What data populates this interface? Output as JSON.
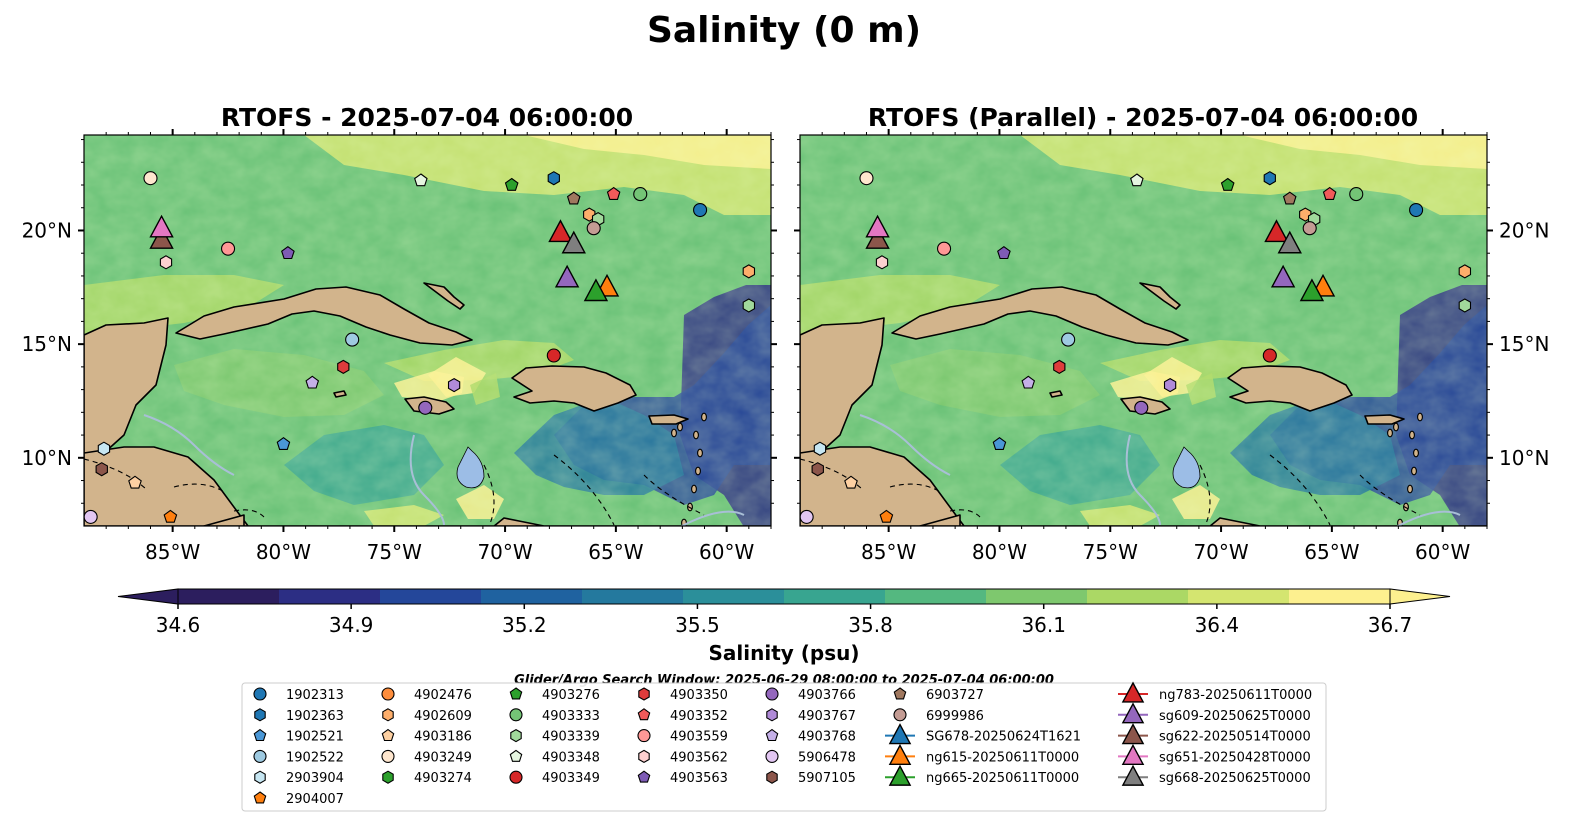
{
  "figure": {
    "title": "Salinity (0 m)",
    "search_window": "Glider/Argo Search Window: 2025-06-29 08:00:00 to 2025-07-04 06:00:00"
  },
  "panels": [
    {
      "title": "RTOFS - 2025-07-04 06:00:00"
    },
    {
      "title": "RTOFS (Parallel) - 2025-07-04 06:00:00"
    }
  ],
  "map": {
    "lon_range": [
      -89,
      -58
    ],
    "lat_range": [
      7,
      24.2
    ],
    "lon_ticks": [
      "85°W",
      "80°W",
      "75°W",
      "70°W",
      "65°W",
      "60°W"
    ],
    "lat_ticks": [
      "20°N",
      "15°N",
      "10°N"
    ],
    "land_color": "#d2b48c",
    "lake_color": "#9cbde6",
    "river_color": "#a8bfd6"
  },
  "colorbar": {
    "label": "Salinity (psu)",
    "min": 34.6,
    "max": 36.7,
    "tick_labels": [
      "34.6",
      "34.9",
      "35.2",
      "35.5",
      "35.8",
      "36.1",
      "36.4",
      "36.7"
    ],
    "colormap": [
      "#2c1e5e",
      "#2c2e84",
      "#24479a",
      "#1f62a0",
      "#24799e",
      "#2b8f9a",
      "#38a590",
      "#54b880",
      "#7ec86e",
      "#abd865",
      "#d4e570",
      "#fdf08f"
    ]
  },
  "legend": {
    "argo": [
      {
        "label": "1902313",
        "shape": "circle",
        "color": "#1f77b4"
      },
      {
        "label": "1902363",
        "shape": "hexagon",
        "color": "#1f77b4"
      },
      {
        "label": "1902521",
        "shape": "pentagon",
        "color": "#4a97d6"
      },
      {
        "label": "1902522",
        "shape": "circle",
        "color": "#9ecae1"
      },
      {
        "label": "2903904",
        "shape": "hexagon",
        "color": "#c6e6f2"
      },
      {
        "label": "2904007",
        "shape": "pentagon",
        "color": "#ff7f0e"
      },
      {
        "label": "4902476",
        "shape": "circle",
        "color": "#fd8d3c"
      },
      {
        "label": "4902609",
        "shape": "hexagon",
        "color": "#fdae6b"
      },
      {
        "label": "4903186",
        "shape": "pentagon",
        "color": "#fdd0a2"
      },
      {
        "label": "4903249",
        "shape": "circle",
        "color": "#fee6ce"
      },
      {
        "label": "4903274",
        "shape": "hexagon",
        "color": "#2ca02c"
      },
      {
        "label": "4903276",
        "shape": "pentagon",
        "color": "#2ca02c"
      },
      {
        "label": "4903333",
        "shape": "circle",
        "color": "#74c476"
      },
      {
        "label": "4903339",
        "shape": "hexagon",
        "color": "#a1d99b"
      },
      {
        "label": "4903348",
        "shape": "pentagon",
        "color": "#e5f5e0"
      },
      {
        "label": "4903349",
        "shape": "circle",
        "color": "#d62728"
      },
      {
        "label": "4903350",
        "shape": "hexagon",
        "color": "#de3c3c"
      },
      {
        "label": "4903352",
        "shape": "pentagon",
        "color": "#f15a5a"
      },
      {
        "label": "4903559",
        "shape": "circle",
        "color": "#ff9896"
      },
      {
        "label": "4903562",
        "shape": "hexagon",
        "color": "#fdd0d0"
      },
      {
        "label": "4903563",
        "shape": "pentagon",
        "color": "#7e5bb5"
      },
      {
        "label": "4903766",
        "shape": "circle",
        "color": "#9467bd"
      },
      {
        "label": "4903767",
        "shape": "hexagon",
        "color": "#b08ad8"
      },
      {
        "label": "4903768",
        "shape": "pentagon",
        "color": "#c5b0e8"
      },
      {
        "label": "5906478",
        "shape": "circle",
        "color": "#e2c6f2"
      },
      {
        "label": "5907105",
        "shape": "hexagon",
        "color": "#8c564b"
      },
      {
        "label": "6903727",
        "shape": "pentagon",
        "color": "#a0785f"
      },
      {
        "label": "6999986",
        "shape": "circle",
        "color": "#c49c94"
      }
    ],
    "gliders": [
      {
        "label": "SG678-20250624T1621",
        "color": "#1f77b4"
      },
      {
        "label": "ng615-20250611T0000",
        "color": "#ff7f0e"
      },
      {
        "label": "ng665-20250611T0000",
        "color": "#2ca02c"
      },
      {
        "label": "ng783-20250611T0000",
        "color": "#d62728"
      },
      {
        "label": "sg609-20250625T0000",
        "color": "#9467bd"
      },
      {
        "label": "sg622-20250514T0000",
        "color": "#8c564b"
      },
      {
        "label": "sg651-20250428T0000",
        "color": "#e377c2"
      },
      {
        "label": "sg668-20250625T0000",
        "color": "#7f7f7f"
      }
    ]
  },
  "argo_positions": [
    {
      "id": "4903249",
      "lon": -86.0,
      "lat": 22.3
    },
    {
      "id": "4903348",
      "lon": -73.8,
      "lat": 22.2
    },
    {
      "id": "4903276",
      "lon": -69.7,
      "lat": 22.0
    },
    {
      "id": "1902363",
      "lon": -67.8,
      "lat": 22.3
    },
    {
      "id": "6903727",
      "lon": -66.9,
      "lat": 21.4
    },
    {
      "id": "4903352",
      "lon": -65.1,
      "lat": 21.6
    },
    {
      "id": "4903333",
      "lon": -63.9,
      "lat": 21.6
    },
    {
      "id": "4902609",
      "lon": -66.2,
      "lat": 20.7
    },
    {
      "id": "4903339",
      "lon": -65.8,
      "lat": 20.5
    },
    {
      "id": "6999986",
      "lon": -66.0,
      "lat": 20.1
    },
    {
      "id": "1902313",
      "lon": -61.2,
      "lat": 20.9
    },
    {
      "id": "4903559",
      "lon": -82.5,
      "lat": 19.2
    },
    {
      "id": "4903563",
      "lon": -79.8,
      "lat": 19.0
    },
    {
      "id": "4903562",
      "lon": -85.3,
      "lat": 18.6
    },
    {
      "id": "4902609",
      "lon": -59.0,
      "lat": 18.2
    },
    {
      "id": "4903339",
      "lon": -59.0,
      "lat": 16.7
    },
    {
      "id": "1902522",
      "lon": -76.9,
      "lat": 15.2
    },
    {
      "id": "4903349",
      "lon": -67.8,
      "lat": 14.5
    },
    {
      "id": "4903350",
      "lon": -77.3,
      "lat": 14.0
    },
    {
      "id": "4903768",
      "lon": -78.7,
      "lat": 13.3
    },
    {
      "id": "4903767",
      "lon": -72.3,
      "lat": 13.2
    },
    {
      "id": "4903766",
      "lon": -73.6,
      "lat": 12.2
    },
    {
      "id": "1902521",
      "lon": -80.0,
      "lat": 10.6
    },
    {
      "id": "2903904",
      "lon": -88.1,
      "lat": 10.4
    },
    {
      "id": "5907105",
      "lon": -88.2,
      "lat": 9.5
    },
    {
      "id": "4903186",
      "lon": -86.7,
      "lat": 8.9
    },
    {
      "id": "5906478",
      "lon": -88.7,
      "lat": 7.4
    },
    {
      "id": "2904007",
      "lon": -85.1,
      "lat": 7.4
    }
  ],
  "glider_positions": [
    {
      "id": "sg622-20250514T0000",
      "lon": -85.5,
      "lat": 19.6
    },
    {
      "id": "sg651-20250428T0000",
      "lon": -85.5,
      "lat": 20.1
    },
    {
      "id": "ng783-20250611T0000",
      "lon": -67.5,
      "lat": 19.9
    },
    {
      "id": "sg668-20250625T0000",
      "lon": -66.9,
      "lat": 19.4
    },
    {
      "id": "sg609-20250625T0000",
      "lon": -67.2,
      "lat": 17.9
    },
    {
      "id": "ng615-20250611T0000",
      "lon": -65.4,
      "lat": 17.5
    },
    {
      "id": "ng665-20250611T0000",
      "lon": -65.9,
      "lat": 17.3
    }
  ]
}
